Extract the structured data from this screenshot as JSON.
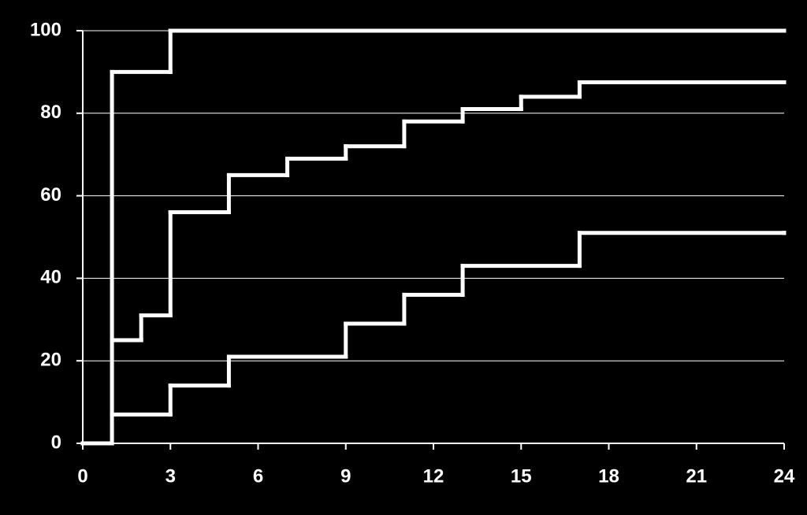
{
  "chart_data": {
    "type": "step",
    "series": [
      {
        "color": "#ffffff",
        "x": [
          0,
          1,
          3,
          24
        ],
        "values": [
          0,
          90,
          100,
          100
        ]
      },
      {
        "color": "#ffffff",
        "x": [
          1,
          2,
          3,
          5,
          7,
          9,
          11,
          13,
          15,
          17,
          24
        ],
        "values": [
          25,
          31,
          56,
          65,
          69,
          72,
          78,
          81,
          84,
          87.5,
          87.5
        ]
      },
      {
        "color": "#ffffff",
        "x": [
          1,
          3,
          5,
          9,
          11,
          13,
          17,
          24
        ],
        "values": [
          7,
          14,
          21,
          29,
          36,
          43,
          51,
          51
        ]
      }
    ],
    "xlim": [
      0,
      24
    ],
    "xticks": [
      0,
      3,
      6,
      9,
      12,
      15,
      18,
      21,
      24
    ],
    "ylim": [
      0,
      100
    ],
    "yticks": [
      0,
      20,
      40,
      60,
      80,
      100
    ],
    "grid": true
  }
}
